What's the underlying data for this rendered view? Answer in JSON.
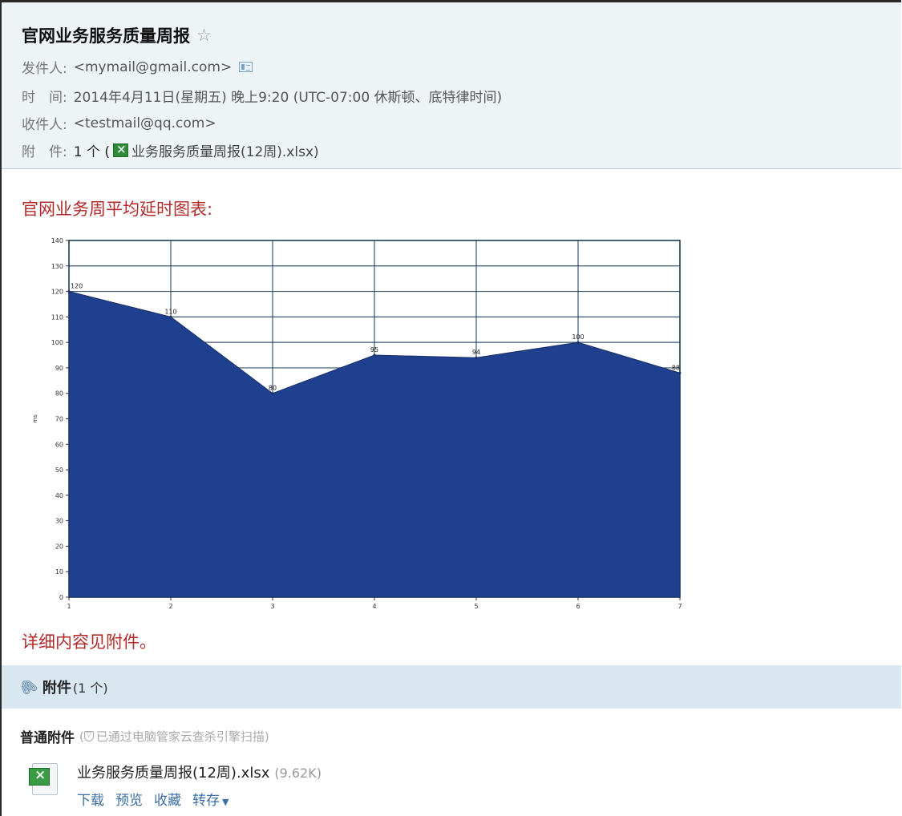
{
  "header": {
    "subject": "官网业务服务质量周报",
    "star_icon": "star-outline-icon",
    "from_label": "发件人:",
    "from_value": "<mymail@gmail.com>",
    "time_label": "时　间:",
    "time_value": "2014年4月11日(星期五) 晚上9:20 (UTC-07:00 休斯顿、底特律时间)",
    "to_label": "收件人:",
    "to_value": "<testmail@qq.com>",
    "attach_label": "附　件:",
    "attach_count": "1 个 (",
    "attach_name": "业务服务质量周报(12周).xlsx)"
  },
  "body": {
    "chart_heading": "官网业务周平均延时图表:",
    "note": "详细内容见附件。"
  },
  "chart_data": {
    "type": "area",
    "x": [
      1,
      2,
      3,
      4,
      5,
      6,
      7
    ],
    "series": [
      {
        "values": [
          120,
          110,
          80,
          95,
          94,
          100,
          88
        ]
      }
    ],
    "data_labels": [
      "120",
      "110",
      "80",
      "95",
      "94",
      "100",
      "88"
    ],
    "x_tick_labels": [
      "1",
      "2",
      "3",
      "4",
      "5",
      "6",
      "7"
    ],
    "y_tick_labels": [
      "0",
      "10",
      "20",
      "30",
      "40",
      "50",
      "60",
      "70",
      "80",
      "90",
      "100",
      "110",
      "120",
      "130",
      "140"
    ],
    "ylabel": "ms",
    "xlim": [
      1,
      7
    ],
    "ylim": [
      0,
      140
    ],
    "grid": true,
    "fill_color": "#1f3f8f",
    "grid_color": "#1a3a55"
  },
  "attachments": {
    "bar_title": "附件",
    "bar_count": "(1 个)",
    "normal_label": "普通附件",
    "scan_note": "已通过电脑管家云查杀引擎扫描)",
    "scan_prefix": "(",
    "file_name": "业务服务质量周报(12周).xlsx",
    "file_size": "(9.62K)",
    "actions": {
      "download": "下载",
      "preview": "预览",
      "collect": "收藏",
      "save_to": "转存"
    }
  },
  "colors": {
    "accent_red": "#b32a2a",
    "link_blue": "#3a6ea5",
    "header_bg": "#eef3f6",
    "attach_bar_bg": "#d9e7f0"
  }
}
